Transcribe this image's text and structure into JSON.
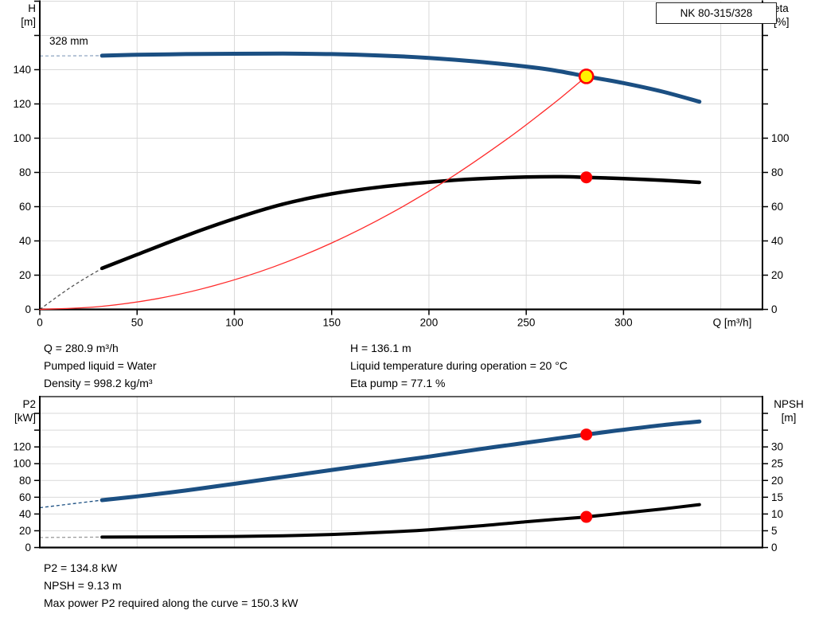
{
  "title_box": {
    "label": "NK 80-315/328"
  },
  "labels": {
    "top_left_axis": [
      "H",
      "[m]"
    ],
    "top_right_axis": [
      "eta",
      "[%]"
    ],
    "impeller": "328 mm",
    "bottom_left_axis": [
      "P2",
      "[kW]"
    ],
    "bottom_right_axis": [
      "NPSH",
      "[m]"
    ]
  },
  "info_top": {
    "left": [
      "Q = 280.9 m³/h",
      "Pumped liquid = Water",
      "Density = 998.2 kg/m³"
    ],
    "right": [
      "H = 136.1 m",
      "Liquid temperature during operation = 20 °C",
      "Eta pump = 77.1 %"
    ]
  },
  "info_bottom": [
    "P2 = 134.8 kW",
    "NPSH = 9.13 m",
    "Max power P2 required along the curve = 150.3 kW"
  ],
  "colors": {
    "curve_blue": "#1B4F82",
    "curve_black": "#000000",
    "curve_red": "#FF2A2A",
    "marker_red": "#FF0000",
    "marker_yellow": "#FFF100",
    "grid": "#D9D9D9",
    "axis": "#000000",
    "dash_blue_grey": "#93A9C4",
    "dash_blue": "#1B4F82",
    "dash_dark": "#555555",
    "dash_grey": "#9B9B9B"
  },
  "chart_data": [
    {
      "type": "line",
      "title": "NK 80-315/328",
      "xlabel": "Q [m³/h]",
      "ylabel_left": "H [m]",
      "ylabel_right": "eta [%]",
      "xlim": [
        0,
        371
      ],
      "ylim_left": [
        0,
        180
      ],
      "ylim_right": [
        0,
        180
      ],
      "x_ticks": [
        0,
        50,
        100,
        150,
        200,
        250,
        300
      ],
      "left_ticks": [
        0,
        20,
        40,
        60,
        80,
        100,
        120,
        140
      ],
      "left_ticks_unlabeled": [
        160,
        180
      ],
      "right_ticks": [
        0,
        20,
        40,
        60,
        80,
        100
      ],
      "right_ticks_unlabeled": [
        120,
        140,
        160
      ],
      "grid_x": [
        50,
        100,
        150,
        200,
        250,
        300,
        350
      ],
      "grid_y": [
        20,
        40,
        60,
        80,
        100,
        120,
        140,
        160,
        180
      ],
      "legend_position": "none",
      "series": [
        {
          "name": "head-curve",
          "label": "328 mm",
          "axis": "left",
          "color_key": "curve_blue",
          "width": 5,
          "points": [
            [
              32,
              148.2
            ],
            [
              50,
              148.7
            ],
            [
              75,
              149.1
            ],
            [
              100,
              149.3
            ],
            [
              125,
              149.4
            ],
            [
              150,
              149.1
            ],
            [
              175,
              148.3
            ],
            [
              200,
              146.9
            ],
            [
              225,
              144.7
            ],
            [
              250,
              141.8
            ],
            [
              265,
              139.5
            ],
            [
              280.9,
              136.1
            ],
            [
              300,
              132.2
            ],
            [
              320,
              127.2
            ],
            [
              339,
              121.3
            ]
          ],
          "lead_dash": {
            "points": [
              [
                0,
                148
              ],
              [
                32,
                148.2
              ]
            ],
            "color_key": "dash_blue_grey"
          }
        },
        {
          "name": "efficiency-curve",
          "axis": "right",
          "color_key": "curve_black",
          "width": 4.5,
          "points": [
            [
              32,
              24
            ],
            [
              50,
              32
            ],
            [
              75,
              43
            ],
            [
              100,
              53
            ],
            [
              125,
              61.5
            ],
            [
              150,
              67.5
            ],
            [
              175,
              71.5
            ],
            [
              200,
              74.3
            ],
            [
              225,
              76.3
            ],
            [
              250,
              77.3
            ],
            [
              268,
              77.5
            ],
            [
              280.9,
              77.1
            ],
            [
              300,
              76.4
            ],
            [
              320,
              75.4
            ],
            [
              339,
              74.2
            ]
          ],
          "lead_dash": {
            "points": [
              [
                0,
                0
              ],
              [
                16,
                13
              ],
              [
                32,
                24
              ]
            ],
            "color_key": "dash_dark"
          }
        },
        {
          "name": "system-curve",
          "axis": "left",
          "color_key": "curve_red",
          "width": 1.3,
          "points": [
            [
              0,
              0
            ],
            [
              30,
              1.6
            ],
            [
              60,
              6.2
            ],
            [
              90,
              14.0
            ],
            [
              120,
              24.8
            ],
            [
              150,
              38.8
            ],
            [
              180,
              55.9
            ],
            [
              210,
              76.1
            ],
            [
              240,
              99.4
            ],
            [
              260,
              116.6
            ],
            [
              270,
              125.7
            ],
            [
              280.9,
              136.1
            ]
          ]
        }
      ],
      "markers": [
        {
          "name": "duty-point-head",
          "axis": "left",
          "x": 280.9,
          "y": 136.1,
          "r": 8.5,
          "fill_key": "marker_yellow",
          "stroke_key": "marker_red",
          "stroke_width": 2.6
        },
        {
          "name": "duty-point-eta",
          "axis": "right",
          "x": 280.9,
          "y": 77.1,
          "r": 7.5,
          "fill_key": "marker_red"
        }
      ]
    },
    {
      "type": "line",
      "title": "",
      "xlabel": "",
      "ylabel_left": "P2 [kW]",
      "ylabel_right": "NPSH [m]",
      "xlim": [
        0,
        371
      ],
      "ylim_left": [
        0,
        180
      ],
      "ylim_right": [
        0,
        45
      ],
      "x_ticks": [],
      "left_ticks": [
        0,
        20,
        40,
        60,
        80,
        100,
        120
      ],
      "left_ticks_unlabeled": [
        140,
        160
      ],
      "right_ticks": [
        0,
        5,
        10,
        15,
        20,
        25,
        30
      ],
      "right_ticks_unlabeled": [
        35,
        40
      ],
      "grid_x": [
        50,
        100,
        150,
        200,
        250,
        300,
        350
      ],
      "grid_y": [
        20,
        40,
        60,
        80,
        100,
        120,
        140,
        160
      ],
      "legend_position": "none",
      "series": [
        {
          "name": "p2-curve",
          "axis": "left",
          "color_key": "curve_blue",
          "width": 5,
          "points": [
            [
              32,
              56.5
            ],
            [
              50,
              61
            ],
            [
              75,
              68
            ],
            [
              100,
              76
            ],
            [
              125,
              84.3
            ],
            [
              150,
              92.5
            ],
            [
              175,
              100.5
            ],
            [
              200,
              108.5
            ],
            [
              225,
              117
            ],
            [
              250,
              125
            ],
            [
              265,
              129.8
            ],
            [
              280.9,
              134.8
            ],
            [
              300,
              140.5
            ],
            [
              320,
              146
            ],
            [
              339,
              150.3
            ]
          ],
          "lead_dash": {
            "points": [
              [
                0,
                47.5
              ],
              [
                32,
                56.5
              ]
            ],
            "color_key": "dash_blue"
          }
        },
        {
          "name": "npsh-curve",
          "axis": "right",
          "color_key": "curve_black",
          "width": 4,
          "points": [
            [
              32,
              3.1
            ],
            [
              50,
              3.15
            ],
            [
              75,
              3.2
            ],
            [
              100,
              3.3
            ],
            [
              125,
              3.5
            ],
            [
              150,
              3.9
            ],
            [
              175,
              4.5
            ],
            [
              200,
              5.3
            ],
            [
              225,
              6.4
            ],
            [
              250,
              7.7
            ],
            [
              265,
              8.4
            ],
            [
              280.9,
              9.13
            ],
            [
              300,
              10.3
            ],
            [
              320,
              11.5
            ],
            [
              339,
              12.8
            ]
          ],
          "lead_dash": {
            "points": [
              [
                0,
                3.0
              ],
              [
                32,
                3.1
              ]
            ],
            "color_key": "dash_grey"
          }
        }
      ],
      "markers": [
        {
          "name": "duty-point-p2",
          "axis": "left",
          "x": 280.9,
          "y": 134.8,
          "r": 7.5,
          "fill_key": "marker_red"
        },
        {
          "name": "duty-point-npsh",
          "axis": "right",
          "x": 280.9,
          "y": 9.13,
          "r": 7.5,
          "fill_key": "marker_red"
        }
      ]
    }
  ]
}
